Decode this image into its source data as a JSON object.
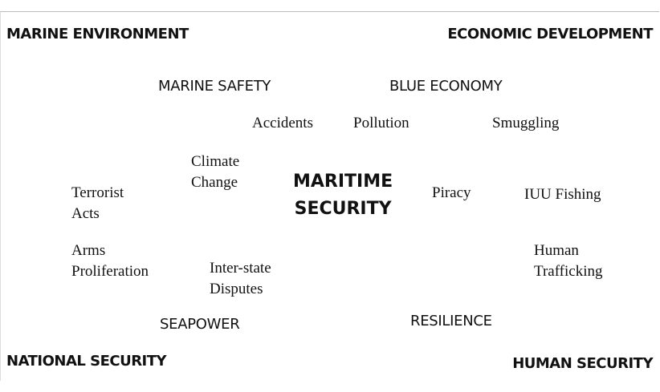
{
  "corners": [
    "MARINE ENVIRONMENT",
    "ECONOMIC DEVELOPMENT",
    "NATIONAL SECURITY",
    "HUMAN SECURITY"
  ],
  "concepts": [
    "MARINE SAFETY",
    "BLUE ECONOMY",
    "SEAPOWER",
    "RESILIENCE"
  ],
  "center": [
    "MARITIME",
    "SECURITY"
  ],
  "issues": [
    [
      "Accidents"
    ],
    [
      "Pollution"
    ],
    [
      "Smuggling"
    ],
    [
      "Climate",
      "Change"
    ],
    [
      "Terrorist",
      "Acts"
    ],
    [
      "Piracy"
    ],
    [
      "IUU Fishing"
    ],
    [
      "Arms",
      "Proliferation"
    ],
    [
      "Inter-state",
      "Disputes"
    ],
    [
      "Human",
      "Trafficking"
    ]
  ]
}
